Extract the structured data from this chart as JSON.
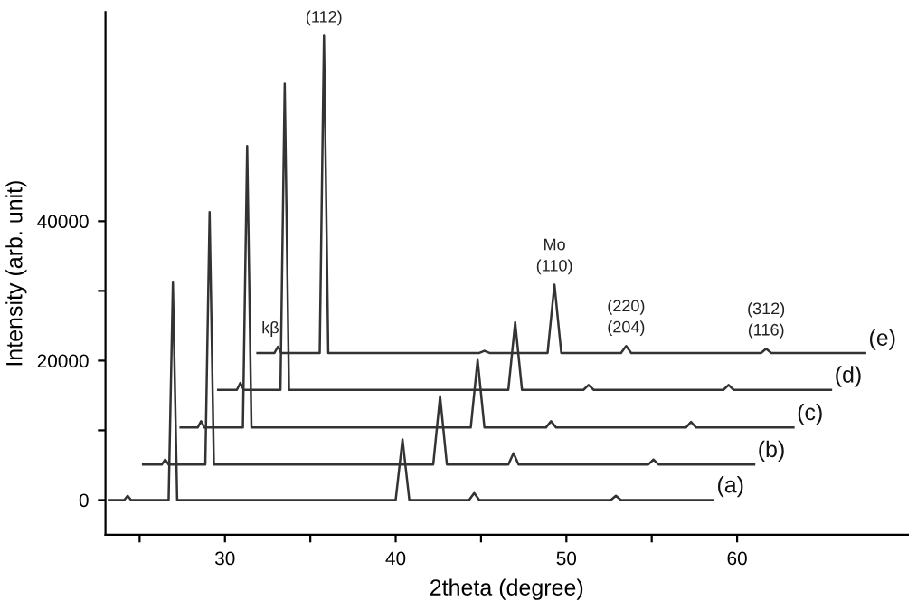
{
  "chart_data": {
    "type": "line",
    "xlabel": "2theta (degree)",
    "ylabel": "Intensity (arb. unit)",
    "xlim": [
      23,
      70
    ],
    "ylim": [
      -5000,
      70000
    ],
    "xticks": [
      {
        "value": 25,
        "label": null
      },
      30,
      {
        "value": 35,
        "label": null
      },
      40,
      {
        "value": 45,
        "label": null
      },
      50,
      {
        "value": 55,
        "label": null
      },
      60
    ],
    "yticks": [
      0,
      {
        "value": 10000,
        "label": null
      },
      20000,
      {
        "value": 30000,
        "label": null
      },
      40000
    ],
    "grid": false,
    "legend": false,
    "marker": "none",
    "line_style": "solid",
    "series": [
      {
        "name": "(a)",
        "color": "#333333",
        "x": [
          23.2,
          24.1,
          24.3,
          24.5,
          26.7,
          26.95,
          27.2,
          40.0,
          40.4,
          40.8,
          44.3,
          44.6,
          44.9,
          52.6,
          52.9,
          53.2,
          58.6
        ],
        "values": [
          0,
          0,
          600,
          0,
          0,
          31200,
          0,
          0,
          8700,
          0,
          0,
          1000,
          0,
          0,
          600,
          0,
          0
        ]
      },
      {
        "name": "(b)",
        "color": "#333333",
        "x": [
          25.2,
          26.3,
          26.5,
          26.7,
          28.85,
          29.1,
          29.35,
          42.2,
          42.6,
          43.0,
          46.6,
          46.9,
          47.2,
          54.8,
          55.1,
          55.4,
          61.0
        ],
        "values": [
          5100,
          5100,
          5800,
          5100,
          5100,
          41300,
          5100,
          5100,
          14900,
          5100,
          5100,
          6700,
          5100,
          5100,
          5800,
          5100,
          5100
        ]
      },
      {
        "name": "(c)",
        "color": "#333333",
        "x": [
          27.4,
          28.4,
          28.6,
          28.8,
          31.05,
          31.3,
          31.55,
          44.4,
          44.8,
          45.2,
          48.8,
          49.1,
          49.4,
          57.0,
          57.3,
          57.6,
          63.3
        ],
        "values": [
          10400,
          10400,
          11300,
          10400,
          10400,
          50800,
          10400,
          10400,
          20100,
          10400,
          10400,
          11300,
          10400,
          10400,
          11200,
          10400,
          10400
        ]
      },
      {
        "name": "(d)",
        "color": "#333333",
        "x": [
          29.6,
          30.7,
          30.9,
          31.1,
          33.25,
          33.5,
          33.75,
          46.6,
          47.0,
          47.4,
          51.0,
          51.3,
          51.6,
          59.2,
          59.5,
          59.8,
          65.5
        ],
        "values": [
          15800,
          15800,
          16800,
          15800,
          15800,
          59700,
          15800,
          15800,
          25500,
          15800,
          15800,
          16500,
          15800,
          15800,
          16500,
          15800,
          15800
        ]
      },
      {
        "name": "(e)",
        "color": "#333333",
        "x": [
          31.9,
          32.9,
          33.1,
          33.3,
          35.55,
          35.8,
          36.05,
          44.9,
          45.2,
          45.5,
          48.9,
          49.3,
          49.7,
          53.2,
          53.5,
          53.8,
          61.4,
          61.7,
          62.0,
          67.5
        ],
        "values": [
          21100,
          21100,
          22000,
          21100,
          21100,
          66600,
          21100,
          21100,
          21400,
          21100,
          21100,
          30900,
          21100,
          21100,
          22100,
          21100,
          21100,
          21700,
          21100,
          21100
        ]
      }
    ],
    "annotations": [
      {
        "text": "(112)",
        "x": 35.8,
        "y": 66600
      },
      {
        "text": "kβ",
        "x": 33.1,
        "y": 22000
      },
      {
        "text": "Mo\n(110)",
        "x": 49.3,
        "y": 30900
      },
      {
        "text": "(220)\n(204)",
        "x": 53.5,
        "y": 22100
      },
      {
        "text": "(312)\n(116)",
        "x": 61.7,
        "y": 21700
      }
    ]
  }
}
